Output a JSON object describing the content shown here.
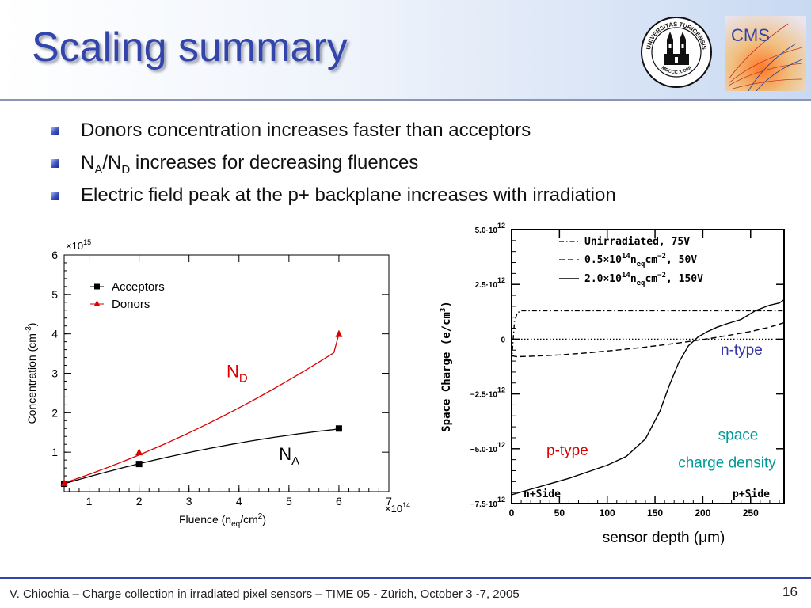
{
  "slide": {
    "title": "Scaling summary",
    "bullets": [
      {
        "text": "Donors concentration increases faster than acceptors"
      },
      {
        "pre": "N",
        "sub1": "A",
        "mid": "/N",
        "sub2": "D",
        "post": " increases for decreasing fluences"
      },
      {
        "text": "Electric field peak at the p+ backplane increases with irradiation"
      }
    ],
    "footer": "V. Chiochia – Charge collection in irradiated pixel sensors – TIME 05 - Zürich, October 3 -7, 2005",
    "page_number": "16",
    "logos": {
      "uzh": {
        "icon": "uzh-seal-icon",
        "top_text": "UNIVERSITAS TURICENSIS",
        "bottom_text": "MDCCC XXXIII"
      },
      "cms": {
        "icon": "cms-logo-icon",
        "text": "CMS"
      }
    },
    "colors": {
      "title": "#3344aa",
      "acceptors": "#000000",
      "donors": "#dd0000",
      "n_type_label": "#3333aa",
      "p_type_label": "#dd0000",
      "space_charge_label": "#009999"
    }
  },
  "chart_data": [
    {
      "type": "line",
      "title": "",
      "xlabel_base": "Fluence (n",
      "xlabel_sub": "eq",
      "xlabel_mid": "/cm",
      "xlabel_sup": "2",
      "xlabel_end": ")",
      "ylabel_base": "Concentration (cm",
      "ylabel_sup": "-3",
      "ylabel_end": ")",
      "x_multiplier": "×10",
      "x_multiplier_exp": "14",
      "y_multiplier": "×10",
      "y_multiplier_exp": "15",
      "xlim": [
        0.5,
        7
      ],
      "ylim": [
        0,
        6
      ],
      "xticks": [
        1,
        2,
        3,
        4,
        5,
        6,
        7
      ],
      "yticks": [
        1,
        2,
        3,
        4,
        5,
        6
      ],
      "legend_position": "top-left",
      "series": [
        {
          "name": "Acceptors",
          "label": "A",
          "color": "#000000",
          "marker": "square",
          "x": [
            0.5,
            2,
            6
          ],
          "y": [
            0.2,
            0.7,
            1.6
          ]
        },
        {
          "name": "Donors",
          "label": "D",
          "color": "#dd0000",
          "marker": "triangle",
          "x": [
            0.5,
            2,
            6
          ],
          "y": [
            0.22,
            1.0,
            4.0
          ]
        }
      ],
      "annotations": [
        {
          "base": "N",
          "sub": "D",
          "color": "#dd0000"
        },
        {
          "base": "N",
          "sub": "A",
          "color": "#000000"
        }
      ]
    },
    {
      "type": "line",
      "title": "",
      "xlabel": "sensor depth (μm)",
      "ylabel": "Space Charge (e/cm",
      "ylabel_sup": "3",
      "ylabel_end": ")",
      "xlim": [
        0,
        285
      ],
      "ylim": [
        -7.5,
        5.0
      ],
      "xticks": [
        0,
        50,
        100,
        150,
        200,
        250
      ],
      "yticks": [
        {
          "value": 5.0,
          "label": "5.0·10",
          "exp": "12"
        },
        {
          "value": 2.5,
          "label": "2.5·10",
          "exp": "12"
        },
        {
          "value": 0,
          "label": "0",
          "exp": ""
        },
        {
          "value": -2.5,
          "label": "−2.5·10",
          "exp": "12"
        },
        {
          "value": -5.0,
          "label": "−5.0·10",
          "exp": "12"
        },
        {
          "value": -7.5,
          "label": "−7.5·10",
          "exp": "12"
        }
      ],
      "legend_position": "top-right",
      "series": [
        {
          "name_pre": "Unirradiated, 75V",
          "name_exp": "",
          "name_post": "",
          "style": "dashdot",
          "x": [
            0,
            3,
            6,
            10,
            15,
            30,
            60,
            100,
            150,
            200,
            250,
            285
          ],
          "y": [
            -1.0,
            0.8,
            1.2,
            1.3,
            1.3,
            1.3,
            1.3,
            1.3,
            1.3,
            1.3,
            1.3,
            1.3
          ]
        },
        {
          "name_pre": "0.5×10",
          "name_exp": "14",
          "name_post": "n",
          "name_sub": "eq",
          "name_end": "cm",
          "name_end_sup": "−2",
          "name_tail": ", 50V",
          "style": "dashed",
          "x": [
            0,
            5,
            20,
            50,
            80,
            110,
            140,
            170,
            190,
            210,
            230,
            250,
            270,
            285
          ],
          "y": [
            -0.75,
            -0.8,
            -0.78,
            -0.72,
            -0.62,
            -0.5,
            -0.36,
            -0.2,
            -0.08,
            0.05,
            0.2,
            0.35,
            0.55,
            0.75
          ]
        },
        {
          "name_pre": "2.0×10",
          "name_exp": "14",
          "name_post": "n",
          "name_sub": "eq",
          "name_end": "cm",
          "name_end_sup": "−2",
          "name_tail": ", 150V",
          "style": "solid",
          "x": [
            0,
            20,
            40,
            60,
            80,
            100,
            120,
            140,
            155,
            165,
            175,
            185,
            195,
            205,
            215,
            225,
            240,
            255,
            270,
            280,
            285
          ],
          "y": [
            -7.1,
            -6.85,
            -6.6,
            -6.35,
            -6.05,
            -5.75,
            -5.35,
            -4.55,
            -3.3,
            -2.1,
            -1.05,
            -0.3,
            0.1,
            0.35,
            0.55,
            0.7,
            0.9,
            1.3,
            1.55,
            1.65,
            1.8
          ]
        }
      ],
      "annotations": {
        "n_type": "n-type",
        "p_type": "p-type",
        "space": "space",
        "charge_density": "charge density",
        "n_side": "n+Side",
        "p_side": "p+Side"
      }
    }
  ]
}
